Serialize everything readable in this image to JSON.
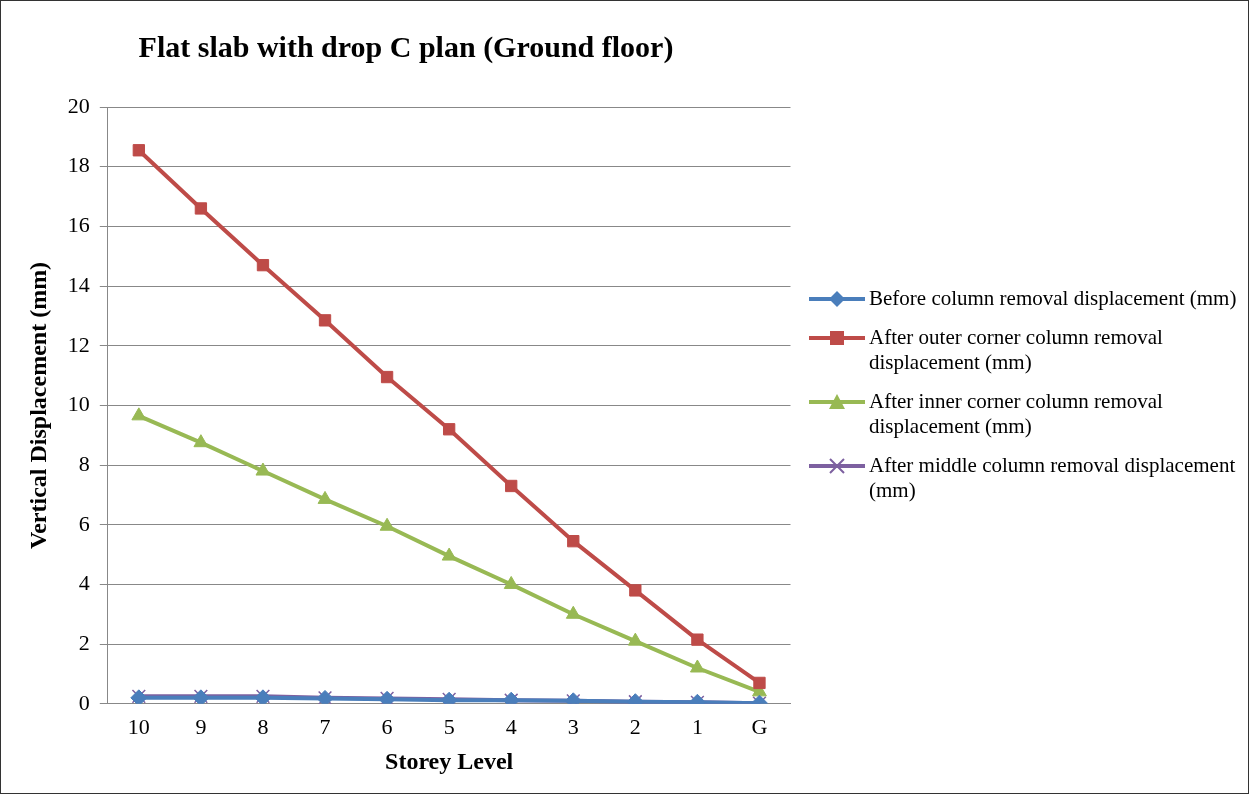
{
  "chart_data": {
    "type": "line",
    "title": "Flat slab with drop C plan (Ground floor)",
    "xlabel": "Storey Level",
    "ylabel": "Vertical Displacement (mm)",
    "categories": [
      "10",
      "9",
      "8",
      "7",
      "6",
      "5",
      "4",
      "3",
      "2",
      "1",
      "G"
    ],
    "ylim": [
      0,
      20
    ],
    "yticks": [
      0,
      2,
      4,
      6,
      8,
      10,
      12,
      14,
      16,
      18,
      20
    ],
    "grid": "y",
    "legend": "right",
    "series": [
      {
        "name": "Before column removal displacement (mm)",
        "color": "#4a7ebb",
        "marker": "diamond",
        "values": [
          0.2,
          0.2,
          0.2,
          0.18,
          0.15,
          0.12,
          0.12,
          0.1,
          0.07,
          0.05,
          0.02
        ]
      },
      {
        "name": "After outer corner column removal displacement (mm)",
        "color": "#be4b48",
        "marker": "square",
        "values": [
          18.55,
          16.6,
          14.7,
          12.85,
          10.95,
          9.2,
          7.3,
          5.45,
          3.8,
          2.15,
          0.7
        ]
      },
      {
        "name": "After inner corner column removal displacement (mm)",
        "color": "#98b954",
        "marker": "triangle",
        "values": [
          9.65,
          8.75,
          7.8,
          6.85,
          5.95,
          4.95,
          4.0,
          3.0,
          2.1,
          1.2,
          0.4
        ]
      },
      {
        "name": "After middle column removal displacement (mm)",
        "color": "#7d60a0",
        "marker": "cross",
        "values": [
          0.25,
          0.25,
          0.25,
          0.2,
          0.18,
          0.15,
          0.12,
          0.1,
          0.07,
          0.05,
          0.02
        ]
      }
    ]
  }
}
